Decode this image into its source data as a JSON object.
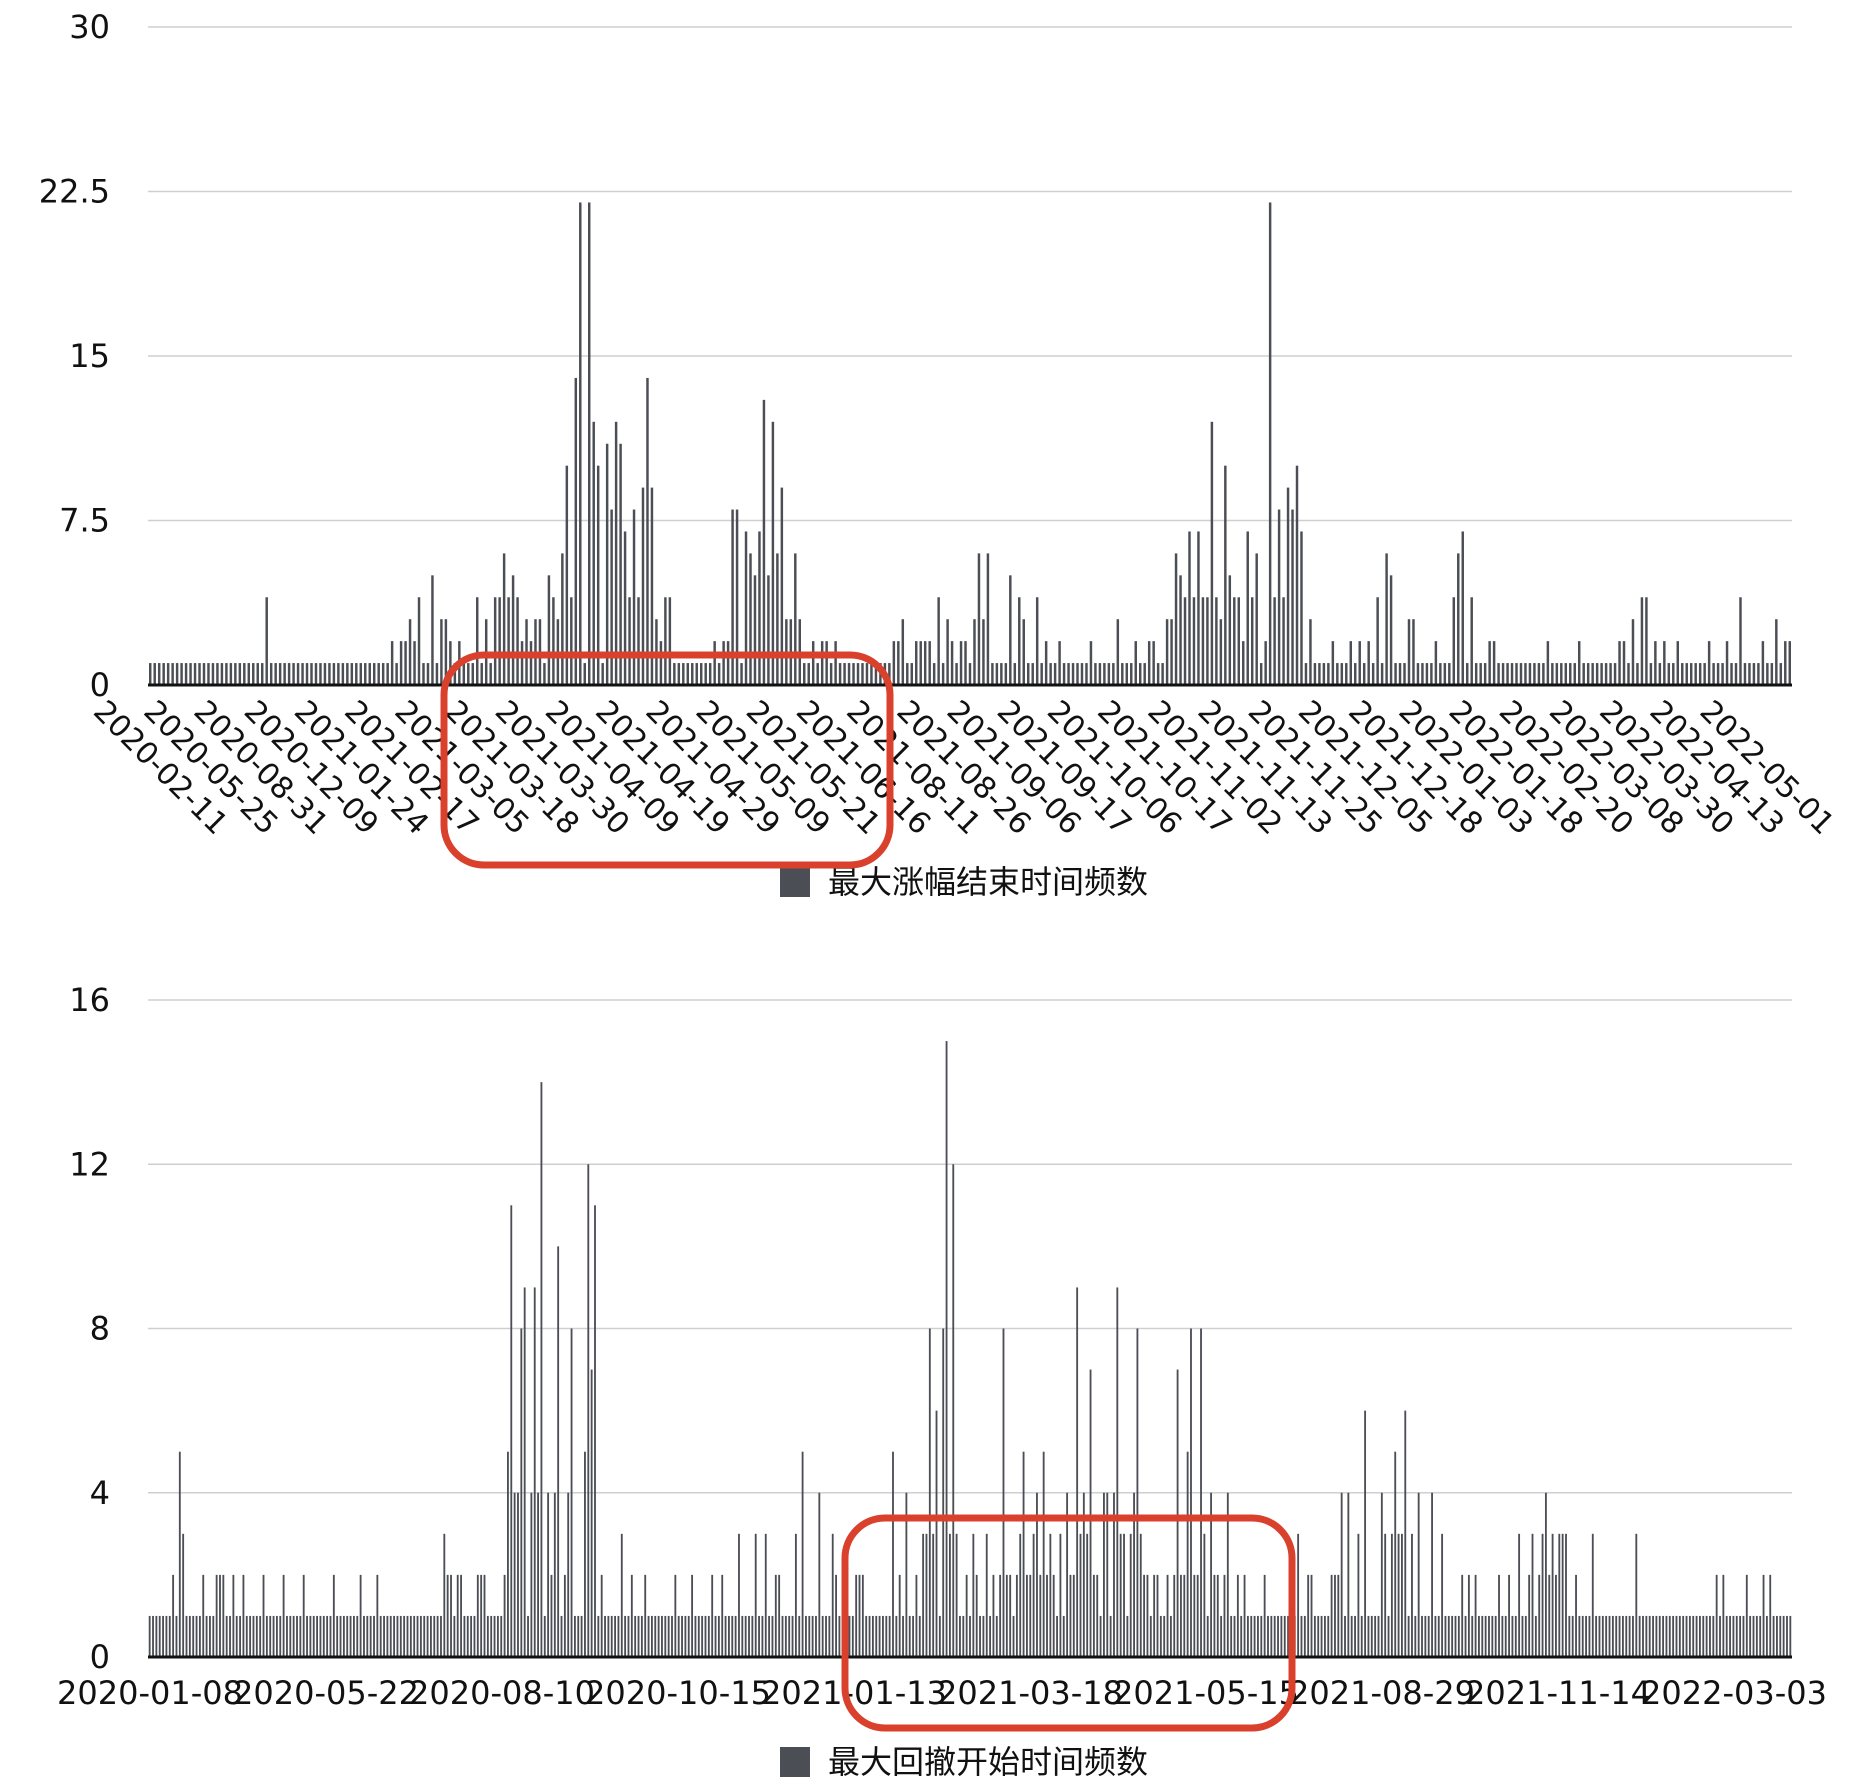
{
  "colors": {
    "bar": "#4b4e55",
    "grid": "#cfcfcf",
    "axis": "#111111",
    "highlight": "#d9412c"
  },
  "chart_data": [
    {
      "type": "bar",
      "legend": "最大涨幅结束时间频数",
      "ylim": [
        0,
        30
      ],
      "yticks": [
        "0",
        "7.5",
        "15",
        "22.5",
        "30"
      ],
      "xlabels": [
        "2020-02-11",
        "2020-05-25",
        "2020-08-31",
        "2020-12-09",
        "2021-01-24",
        "2021-02-17",
        "2021-03-05",
        "2021-03-18",
        "2021-03-30",
        "2021-04-09",
        "2021-04-19",
        "2021-04-29",
        "2021-05-09",
        "2021-05-21",
        "2021-06-16",
        "2021-08-11",
        "2021-08-26",
        "2021-09-06",
        "2021-09-17",
        "2021-10-06",
        "2021-10-17",
        "2021-11-02",
        "2021-11-13",
        "2021-11-25",
        "2021-12-05",
        "2021-12-18",
        "2022-01-03",
        "2022-01-18",
        "2022-02-20",
        "2022-03-08",
        "2022-03-30",
        "2022-04-13",
        "2022-05-01"
      ],
      "values": [
        1,
        1,
        1,
        1,
        1,
        1,
        1,
        1,
        1,
        1,
        1,
        1,
        1,
        1,
        1,
        1,
        1,
        1,
        1,
        1,
        1,
        1,
        1,
        1,
        1,
        1,
        4,
        1,
        1,
        1,
        1,
        1,
        1,
        1,
        1,
        1,
        1,
        1,
        1,
        1,
        1,
        1,
        1,
        1,
        1,
        1,
        1,
        1,
        1,
        1,
        1,
        1,
        1,
        1,
        2,
        1,
        2,
        2,
        3,
        2,
        4,
        1,
        1,
        5,
        1,
        3,
        3,
        2,
        1,
        2,
        1,
        1,
        1,
        4,
        1,
        3,
        1,
        4,
        4,
        6,
        4,
        5,
        4,
        2,
        3,
        2,
        3,
        3,
        1,
        5,
        4,
        3,
        6,
        10,
        4,
        14,
        22,
        1,
        22,
        12,
        10,
        1,
        11,
        8,
        12,
        11,
        7,
        4,
        8,
        4,
        9,
        14,
        9,
        3,
        2,
        4,
        4,
        1,
        1,
        1,
        1,
        1,
        1,
        1,
        1,
        1,
        2,
        1,
        2,
        2,
        8,
        8,
        1,
        7,
        6,
        5,
        7,
        13,
        5,
        12,
        6,
        9,
        3,
        3,
        6,
        3,
        1,
        1,
        2,
        1,
        2,
        2,
        1,
        2,
        1,
        1,
        1,
        1,
        1,
        1,
        1,
        1,
        1,
        1,
        1,
        1,
        2,
        2,
        3,
        1,
        1,
        2,
        2,
        2,
        2,
        1,
        4,
        1,
        3,
        2,
        1,
        2,
        2,
        1,
        3,
        6,
        3,
        6,
        1,
        1,
        1,
        1,
        5,
        1,
        4,
        3,
        1,
        1,
        4,
        1,
        2,
        1,
        1,
        2,
        1,
        1,
        1,
        1,
        1,
        1,
        2,
        1,
        1,
        1,
        1,
        1,
        3,
        1,
        1,
        1,
        2,
        1,
        1,
        2,
        2,
        1,
        1,
        3,
        3,
        6,
        5,
        4,
        7,
        4,
        7,
        4,
        4,
        12,
        4,
        3,
        10,
        5,
        4,
        4,
        2,
        7,
        4,
        6,
        1,
        2,
        22,
        4,
        8,
        4,
        9,
        8,
        10,
        7,
        1,
        3,
        1,
        1,
        1,
        1,
        2,
        1,
        1,
        1,
        2,
        1,
        2,
        1,
        2,
        1,
        4,
        1,
        6,
        5,
        1,
        1,
        1,
        3,
        3,
        1,
        1,
        1,
        1,
        2,
        1,
        1,
        1,
        4,
        6,
        7,
        1,
        4,
        1,
        1,
        1,
        2,
        2,
        1,
        1,
        1,
        1,
        1,
        1,
        1,
        1,
        1,
        1,
        1,
        2,
        1,
        1,
        1,
        1,
        1,
        1,
        2,
        1,
        1,
        1,
        1,
        1,
        1,
        1,
        1,
        2,
        2,
        1,
        3,
        1,
        4,
        4,
        1,
        2,
        1,
        2,
        1,
        1,
        2,
        1,
        1,
        1,
        1,
        1,
        1,
        2,
        1,
        1,
        1,
        2,
        1,
        1,
        4,
        1,
        1,
        1,
        1,
        2,
        1,
        1,
        3,
        1,
        2,
        2
      ]
    },
    {
      "type": "bar",
      "legend": "最大回撤开始时间频数",
      "ylim": [
        0,
        16
      ],
      "yticks": [
        "0",
        "4",
        "8",
        "12",
        "16"
      ],
      "xlabels": [
        "2020-01-08",
        "2020-05-22",
        "2020-08-10",
        "2020-10-15",
        "2021-01-13",
        "2021-03-18",
        "2021-05-15",
        "2021-08-29",
        "2021-11-14",
        "2022-03-03"
      ],
      "values": [
        1,
        1,
        1,
        1,
        1,
        1,
        1,
        2,
        1,
        5,
        3,
        1,
        1,
        1,
        1,
        1,
        2,
        1,
        1,
        1,
        2,
        2,
        2,
        1,
        1,
        2,
        1,
        1,
        2,
        1,
        1,
        1,
        1,
        1,
        2,
        1,
        1,
        1,
        1,
        1,
        2,
        1,
        1,
        1,
        1,
        1,
        2,
        1,
        1,
        1,
        1,
        1,
        1,
        1,
        1,
        2,
        1,
        1,
        1,
        1,
        1,
        1,
        1,
        2,
        1,
        1,
        1,
        1,
        2,
        1,
        1,
        1,
        1,
        1,
        1,
        1,
        1,
        1,
        1,
        1,
        1,
        1,
        1,
        1,
        1,
        1,
        1,
        1,
        3,
        2,
        2,
        1,
        2,
        2,
        1,
        1,
        1,
        1,
        2,
        2,
        2,
        1,
        1,
        1,
        1,
        1,
        2,
        5,
        11,
        4,
        4,
        8,
        9,
        1,
        4,
        9,
        4,
        14,
        1,
        4,
        2,
        4,
        10,
        1,
        2,
        4,
        8,
        1,
        1,
        1,
        5,
        12,
        7,
        11,
        1,
        2,
        1,
        1,
        1,
        1,
        1,
        3,
        1,
        1,
        2,
        1,
        1,
        1,
        2,
        1,
        1,
        1,
        1,
        1,
        1,
        1,
        1,
        2,
        1,
        1,
        1,
        1,
        2,
        1,
        1,
        1,
        1,
        1,
        2,
        1,
        1,
        2,
        1,
        1,
        1,
        1,
        3,
        1,
        1,
        1,
        1,
        3,
        1,
        1,
        3,
        1,
        1,
        2,
        2,
        1,
        1,
        1,
        1,
        3,
        1,
        5,
        1,
        1,
        1,
        1,
        4,
        1,
        1,
        1,
        3,
        2,
        1,
        1,
        1,
        1,
        1,
        2,
        2,
        2,
        1,
        1,
        1,
        1,
        1,
        1,
        1,
        1,
        5,
        1,
        2,
        1,
        4,
        1,
        1,
        2,
        1,
        3,
        3,
        8,
        3,
        6,
        1,
        8,
        15,
        3,
        12,
        3,
        1,
        1,
        2,
        1,
        3,
        2,
        1,
        1,
        3,
        1,
        2,
        1,
        2,
        8,
        2,
        2,
        1,
        2,
        3,
        5,
        2,
        2,
        3,
        4,
        2,
        5,
        2,
        3,
        2,
        1,
        3,
        1,
        4,
        2,
        2,
        9,
        3,
        4,
        3,
        7,
        2,
        2,
        1,
        4,
        4,
        1,
        4,
        9,
        3,
        3,
        1,
        3,
        4,
        8,
        3,
        2,
        2,
        1,
        2,
        2,
        1,
        1,
        2,
        1,
        2,
        7,
        2,
        2,
        5,
        8,
        2,
        2,
        8,
        3,
        1,
        4,
        2,
        2,
        1,
        2,
        4,
        1,
        1,
        2,
        1,
        2,
        1,
        1,
        1,
        1,
        1,
        2,
        1,
        1,
        1,
        1,
        1,
        1,
        1,
        1,
        1,
        3,
        1,
        1,
        2,
        2,
        1,
        1,
        1,
        1,
        1,
        2,
        2,
        2,
        4,
        1,
        4,
        1,
        1,
        3,
        1,
        6,
        1,
        1,
        1,
        1,
        4,
        3,
        1,
        3,
        5,
        3,
        3,
        6,
        1,
        3,
        1,
        4,
        1,
        1,
        1,
        4,
        1,
        1,
        3,
        1,
        1,
        1,
        1,
        1,
        2,
        1,
        2,
        1,
        2,
        1,
        1,
        1,
        1,
        1,
        1,
        2,
        1,
        1,
        2,
        1,
        1,
        3,
        1,
        1,
        2,
        3,
        1,
        2,
        3,
        4,
        2,
        3,
        2,
        3,
        3,
        3,
        1,
        1,
        2,
        1,
        1,
        1,
        1,
        3,
        1,
        1,
        1,
        1,
        1,
        1,
        1,
        1,
        1,
        1,
        1,
        1,
        3,
        1,
        1,
        1,
        1,
        1,
        1,
        1,
        1,
        1,
        1,
        1,
        1,
        1,
        1,
        1,
        1,
        1,
        1,
        1,
        1,
        1,
        1,
        1,
        2,
        1,
        2,
        1,
        1,
        1,
        1,
        1,
        1,
        2,
        1,
        1,
        1,
        1,
        2,
        1,
        2,
        1,
        1,
        1,
        1,
        1,
        1
      ]
    }
  ]
}
